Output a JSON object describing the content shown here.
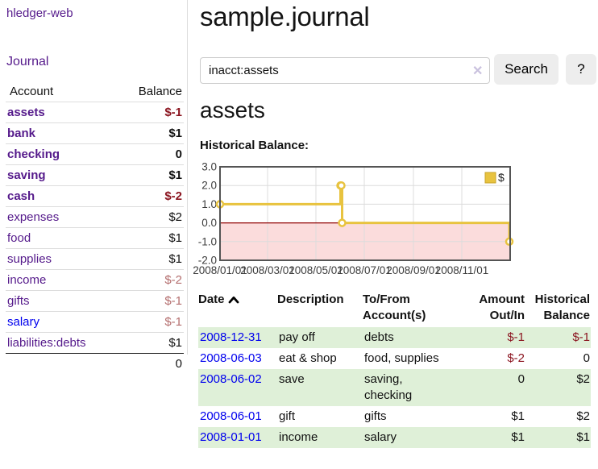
{
  "app": {
    "brand": "hledger-web"
  },
  "colors": {
    "link_purple": "#551a8b",
    "link_blue": "#0000ee",
    "negative_strong": "#8b1520",
    "negative_muted": "#b46e6e",
    "row_green": "#dff0d8",
    "chart_gold": "#e8c33f"
  },
  "sidebar": {
    "nav": {
      "journal": "Journal"
    },
    "table": {
      "headers": {
        "account": "Account",
        "balance": "Balance"
      },
      "accounts": [
        {
          "name": "assets",
          "balance": "$-1"
        },
        {
          "name": "bank",
          "balance": "$1"
        },
        {
          "name": "checking",
          "balance": "0"
        },
        {
          "name": "saving",
          "balance": "$1"
        },
        {
          "name": "cash",
          "balance": "$-2"
        },
        {
          "name": "expenses",
          "balance": "$2"
        },
        {
          "name": "food",
          "balance": "$1"
        },
        {
          "name": "supplies",
          "balance": "$1"
        },
        {
          "name": "income",
          "balance": "$-2"
        },
        {
          "name": "gifts",
          "balance": "$-1"
        },
        {
          "name": "salary",
          "balance": "$-1"
        },
        {
          "name": "liabilities:debts",
          "balance": "$1"
        }
      ],
      "total": "0"
    }
  },
  "header": {
    "title": "sample.journal"
  },
  "search": {
    "value": "inacct:assets",
    "clear_label": "✕",
    "button_label": "Search",
    "help_label": "?"
  },
  "account_page": {
    "heading": "assets",
    "chart_title": "Historical Balance:"
  },
  "chart_data": {
    "type": "line",
    "step": true,
    "title": "Historical Balance:",
    "x_domain": [
      "2008-01-01",
      "2009-01-01"
    ],
    "ylim": [
      -2,
      3
    ],
    "y_ticks": [
      {
        "value": 3,
        "label": "3.0"
      },
      {
        "value": 2,
        "label": "2.0"
      },
      {
        "value": 1,
        "label": "1.0"
      },
      {
        "value": 0,
        "label": "0.0"
      },
      {
        "value": -1,
        "label": "-1.0"
      },
      {
        "value": -2,
        "label": "-2.0"
      }
    ],
    "x_ticks": [
      {
        "date": "2008-01-01",
        "label": "2008/01/01"
      },
      {
        "date": "2008-03-01",
        "label": "2008/03/01"
      },
      {
        "date": "2008-05-01",
        "label": "2008/05/01"
      },
      {
        "date": "2008-07-01",
        "label": "2008/07/01"
      },
      {
        "date": "2008-09-01",
        "label": "2008/09/01"
      },
      {
        "date": "2008-11-01",
        "label": "2008/11/01"
      }
    ],
    "series": [
      {
        "name": "$",
        "color": "#e8c33f",
        "swatch_border": "#c9a32a",
        "points": [
          [
            "2008-01-01",
            1
          ],
          [
            "2008-06-01",
            2
          ],
          [
            "2008-06-02",
            2
          ],
          [
            "2008-06-03",
            0
          ],
          [
            "2008-12-31",
            -1
          ]
        ]
      }
    ],
    "legend_position": "top-right",
    "grid": true,
    "grid_color": "#dcdcdc",
    "negative_fill": "#fbdcdc",
    "zero_line_color": "#8f0000",
    "border_color": "#545454",
    "tick_label_color": "#3c3c3c"
  },
  "register": {
    "headers": [
      "Date",
      "Description",
      "To/From Account(s)",
      "Amount Out/In",
      "Historical Balance"
    ],
    "sort_icon": "chevron-up",
    "rows": [
      {
        "date": "2008-12-31",
        "description": "pay off",
        "accounts": "debts",
        "amount": "$-1",
        "balance": "$-1"
      },
      {
        "date": "2008-06-03",
        "description": "eat & shop",
        "accounts": "food, supplies",
        "amount": "$-2",
        "balance": "0"
      },
      {
        "date": "2008-06-02",
        "description": "save",
        "accounts": "saving, checking",
        "amount": "0",
        "balance": "$2"
      },
      {
        "date": "2008-06-01",
        "description": "gift",
        "accounts": "gifts",
        "amount": "$1",
        "balance": "$2"
      },
      {
        "date": "2008-01-01",
        "description": "income",
        "accounts": "salary",
        "amount": "$1",
        "balance": "$1"
      }
    ]
  }
}
